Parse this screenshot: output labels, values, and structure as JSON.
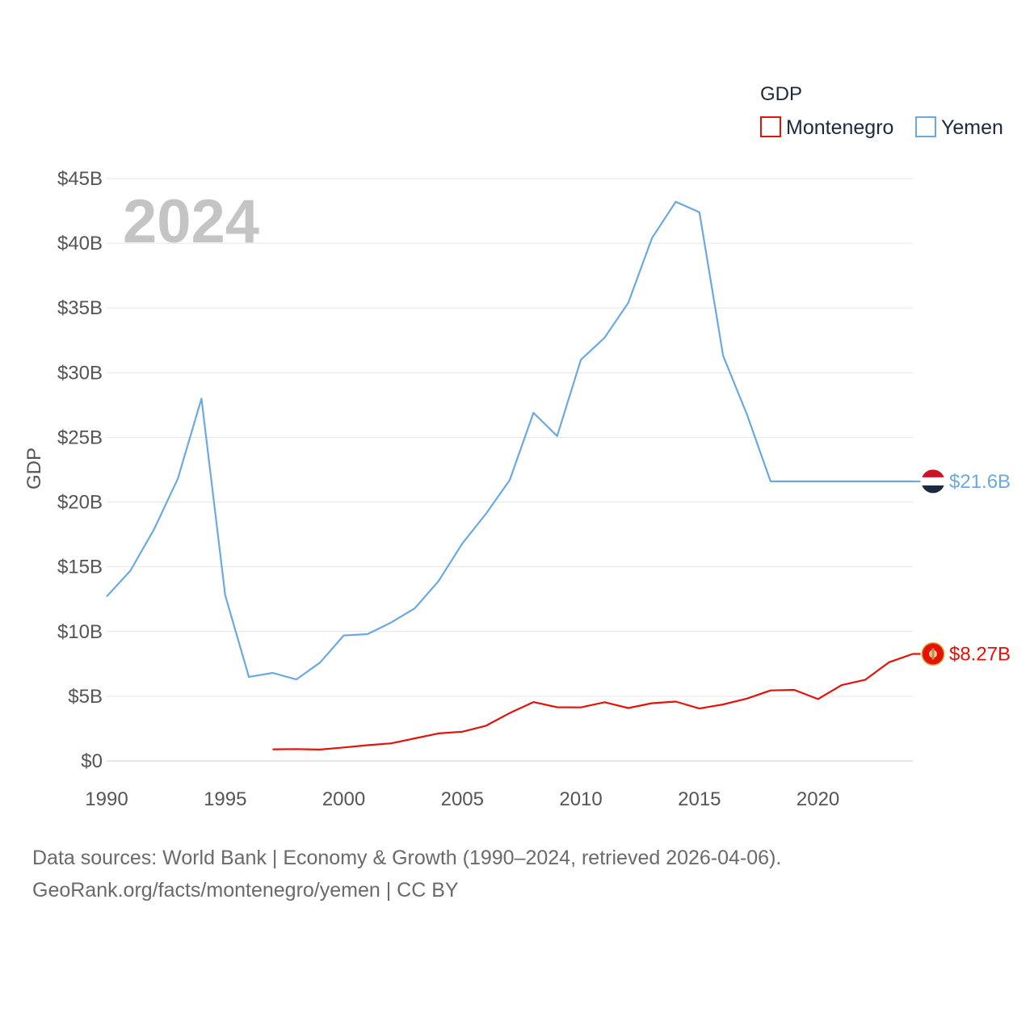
{
  "chart_data": {
    "type": "line",
    "title": "GDP",
    "ylabel": "GDP",
    "xlabel": "",
    "year_display": "2024",
    "xlim": [
      1990,
      2024
    ],
    "ylim": [
      0,
      45
    ],
    "x_ticks": [
      {
        "value": 1990,
        "label": "1990"
      },
      {
        "value": 1995,
        "label": "1995"
      },
      {
        "value": 2000,
        "label": "2000"
      },
      {
        "value": 2005,
        "label": "2005"
      },
      {
        "value": 2010,
        "label": "2010"
      },
      {
        "value": 2015,
        "label": "2015"
      },
      {
        "value": 2020,
        "label": "2020"
      }
    ],
    "y_ticks": [
      {
        "value": 0,
        "label": "$0"
      },
      {
        "value": 5,
        "label": "$5B"
      },
      {
        "value": 10,
        "label": "$10B"
      },
      {
        "value": 15,
        "label": "$15B"
      },
      {
        "value": 20,
        "label": "$20B"
      },
      {
        "value": 25,
        "label": "$25B"
      },
      {
        "value": 30,
        "label": "$30B"
      },
      {
        "value": 35,
        "label": "$35B"
      },
      {
        "value": 40,
        "label": "$40B"
      },
      {
        "value": 45,
        "label": "$45B"
      }
    ],
    "grid": true,
    "legend_position": "top-right",
    "series": [
      {
        "name": "Montenegro",
        "color": "#e3120b",
        "end_label": "$8.27B",
        "flag_icon": "montenegro-flag-icon",
        "x": [
          1997,
          1998,
          1999,
          2000,
          2001,
          2002,
          2003,
          2004,
          2005,
          2006,
          2007,
          2008,
          2009,
          2010,
          2011,
          2012,
          2013,
          2014,
          2015,
          2016,
          2017,
          2018,
          2019,
          2020,
          2021,
          2022,
          2023,
          2024
        ],
        "values": [
          0.9,
          0.92,
          0.88,
          1.04,
          1.22,
          1.36,
          1.75,
          2.13,
          2.26,
          2.72,
          3.7,
          4.55,
          4.15,
          4.14,
          4.54,
          4.09,
          4.46,
          4.59,
          4.05,
          4.37,
          4.82,
          5.45,
          5.49,
          4.78,
          5.86,
          6.28,
          7.63,
          8.27
        ]
      },
      {
        "name": "Yemen",
        "color": "#6aa9e3",
        "end_label": "$21.6B",
        "flag_icon": "yemen-flag-icon",
        "x": [
          1990,
          1991,
          1992,
          1993,
          1994,
          1995,
          1996,
          1997,
          1998,
          1999,
          2000,
          2001,
          2002,
          2003,
          2004,
          2005,
          2006,
          2007,
          2008,
          2009,
          2010,
          2011,
          2012,
          2013,
          2014,
          2015,
          2016,
          2017,
          2018,
          2019,
          2020,
          2021,
          2022,
          2023,
          2024
        ],
        "values": [
          12.7,
          14.7,
          17.9,
          21.8,
          28.0,
          12.8,
          6.5,
          6.8,
          6.3,
          7.6,
          9.7,
          9.8,
          10.7,
          11.8,
          13.9,
          16.8,
          19.1,
          21.7,
          26.9,
          25.1,
          31.0,
          32.7,
          35.4,
          40.4,
          43.2,
          42.4,
          31.3,
          26.8,
          21.6,
          21.6,
          21.6,
          21.6,
          21.6,
          21.6,
          21.6
        ]
      }
    ]
  },
  "footer": {
    "line1": "Data sources: World Bank | Economy & Growth (1990–2024, retrieved 2026-04-06).",
    "line2": "GeoRank.org/facts/montenegro/yemen | CC BY"
  }
}
